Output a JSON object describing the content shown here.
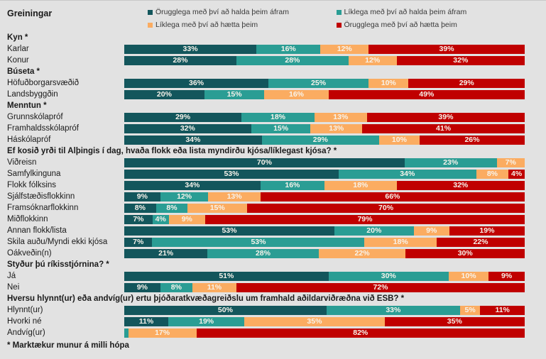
{
  "title": "Greiningar",
  "footnote": "* Marktækur munur á milli hópa",
  "colors": {
    "background": "#E2E2E2",
    "label_text": "#1A1A1A",
    "legend_text": "#3A3A3A",
    "bar_value_text": "#F7F3EB"
  },
  "chart_data": {
    "type": "bar",
    "orientation": "horizontal_stacked",
    "stack_total": 100,
    "title": "Greiningar",
    "footnote": "* Marktækur munur á milli hópa",
    "legend_position": "top",
    "grid": false,
    "value_label_format": "{v}%",
    "min_label_value": 4,
    "legend": [
      {
        "label": "Örugglega með því að halda þeim áfram",
        "color": "#13565C"
      },
      {
        "label": "Líklega með því að halda þeim áfram",
        "color": "#2A9D94"
      },
      {
        "label": "Líklega með því að hætta þeim",
        "color": "#FBAC61"
      },
      {
        "label": "Örugglega með því að hætta þeim",
        "color": "#C00000"
      }
    ],
    "groups": [
      {
        "header": "Kyn *",
        "rows": [
          {
            "label": "Karlar",
            "values": [
              33,
              16,
              12,
              39
            ]
          },
          {
            "label": "Konur",
            "values": [
              28,
              28,
              12,
              32
            ]
          }
        ]
      },
      {
        "header": "Búseta *",
        "rows": [
          {
            "label": "Höfuðborgarsvæðið",
            "values": [
              36,
              25,
              10,
              29
            ]
          },
          {
            "label": "Landsbyggðin",
            "values": [
              20,
              15,
              16,
              49
            ]
          }
        ]
      },
      {
        "header": "Menntun *",
        "rows": [
          {
            "label": "Grunnskólapróf",
            "values": [
              29,
              18,
              13,
              39
            ]
          },
          {
            "label": "Framhaldsskólapróf",
            "values": [
              32,
              15,
              13,
              41
            ]
          },
          {
            "label": "Háskólapróf",
            "values": [
              34,
              29,
              10,
              26
            ]
          }
        ]
      },
      {
        "header": "Ef kosið yrði til Alþingis í dag, hvaða flokk eða lista myndirðu kjósa/líklegast kjósa? *",
        "rows": [
          {
            "label": "Viðreisn",
            "values": [
              70,
              23,
              7,
              0
            ]
          },
          {
            "label": "Samfylkinguna",
            "values": [
              53,
              34,
              8,
              4
            ]
          },
          {
            "label": "Flokk fólksins",
            "values": [
              34,
              16,
              18,
              32
            ]
          },
          {
            "label": "Sjálfstæðisflokkinn",
            "values": [
              9,
              12,
              13,
              66
            ]
          },
          {
            "label": "Framsóknarflokkinn",
            "values": [
              8,
              8,
              15,
              70
            ]
          },
          {
            "label": "Miðflokkinn",
            "values": [
              7,
              4,
              9,
              79
            ]
          },
          {
            "label": "Annan flokk/lista",
            "values": [
              53,
              20,
              9,
              19
            ]
          },
          {
            "label": "Skila auðu/Myndi ekki kjósa",
            "values": [
              7,
              53,
              18,
              22
            ]
          },
          {
            "label": "Óákveðin(n)",
            "values": [
              21,
              28,
              22,
              30
            ]
          }
        ]
      },
      {
        "header": "Styður þú ríkisstjórnina? *",
        "rows": [
          {
            "label": "Já",
            "values": [
              51,
              30,
              10,
              9
            ]
          },
          {
            "label": "Nei",
            "values": [
              9,
              8,
              11,
              72
            ]
          }
        ]
      },
      {
        "header": "Hversu hlynnt(ur) eða andvíg(ur) ertu þjóðaratkvæðagreiðslu um framhald aðildarviðræðna við ESB? *",
        "rows": [
          {
            "label": "Hlynnt(ur)",
            "values": [
              50,
              33,
              5,
              11
            ]
          },
          {
            "label": "Hvorki né",
            "values": [
              11,
              19,
              35,
              35
            ]
          },
          {
            "label": "Andvíg(ur)",
            "values": [
              0,
              1,
              17,
              82
            ]
          }
        ]
      }
    ]
  }
}
